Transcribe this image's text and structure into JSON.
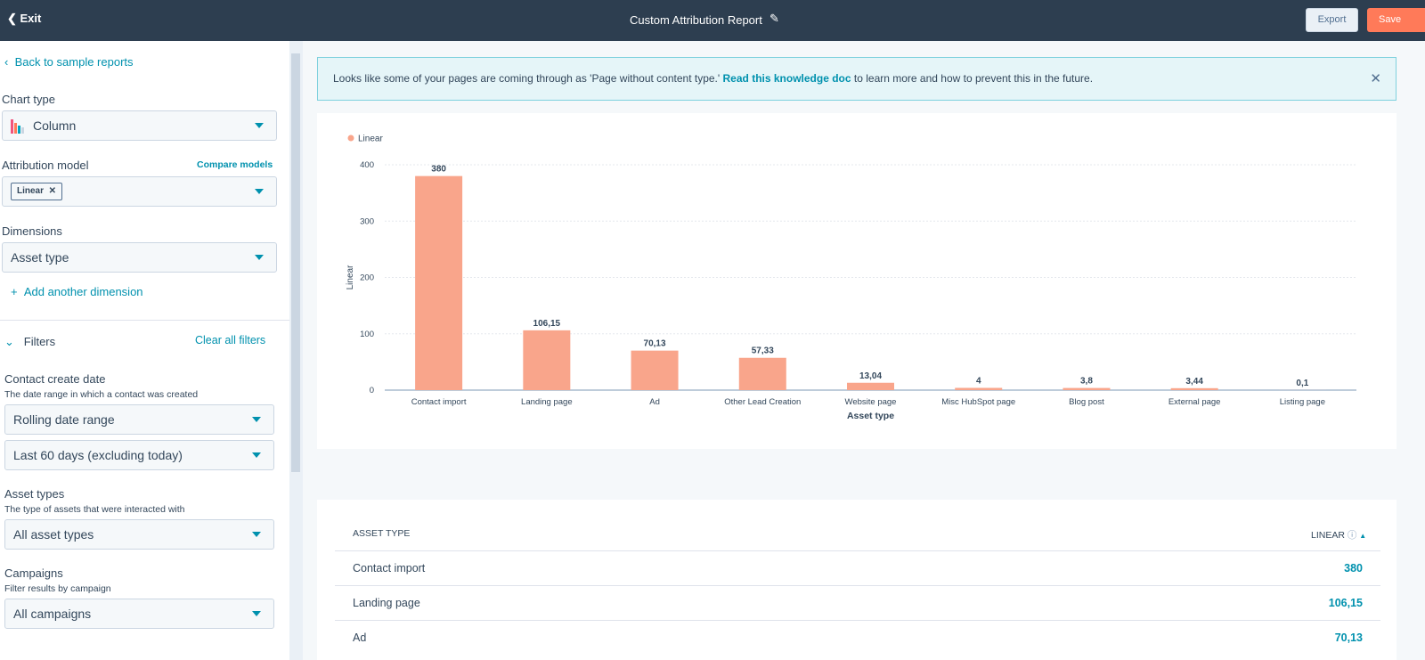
{
  "header": {
    "exit": "Exit",
    "title": "Custom Attribution Report",
    "export": "Export",
    "save": "Save"
  },
  "sidebar": {
    "back": "Back to sample reports",
    "chart_type_label": "Chart type",
    "chart_type": "Column",
    "attribution_label": "Attribution model",
    "compare": "Compare models",
    "model_tag": "Linear",
    "dimensions_label": "Dimensions",
    "dimension": "Asset type",
    "add_dimension": "Add another dimension",
    "filters": "Filters",
    "clear_filters": "Clear all filters",
    "filter_groups": [
      {
        "label": "Contact create date",
        "description": "The date range in which a contact was created",
        "selects": [
          "Rolling date range",
          "Last 60 days (excluding today)"
        ]
      },
      {
        "label": "Asset types",
        "description": "The type of assets that were interacted with",
        "selects": [
          "All asset types"
        ]
      },
      {
        "label": "Campaigns",
        "description": "Filter results by campaign",
        "selects": [
          "All campaigns"
        ]
      }
    ]
  },
  "alert": {
    "text_before": "Looks like some of your pages are coming through as 'Page without content type.'",
    "link": "Read this knowledge doc",
    "text_after": "to learn more and how to prevent this in the future."
  },
  "chart_data": {
    "type": "bar",
    "x_label": "Asset type",
    "y_label": "Linear",
    "categories": [
      "Contact import",
      "Landing page",
      "Ad",
      "Other Lead Creation",
      "Website page",
      "Misc HubSpot page",
      "Blog post",
      "External page",
      "Listing page"
    ],
    "series": [
      {
        "name": "Linear",
        "color": "#f9a58b",
        "values": [
          380,
          106.15,
          70.13,
          57.33,
          13.04,
          4,
          3.8,
          3.44,
          0.1
        ],
        "value_labels": [
          "380",
          "106,15",
          "70,13",
          "57,33",
          "13,04",
          "4",
          "3,8",
          "3,44",
          "0,1"
        ]
      }
    ],
    "ylim": [
      0,
      400
    ],
    "yticks": [
      0,
      100,
      200,
      300,
      400
    ],
    "grid": true,
    "legend": "top-left"
  },
  "table": {
    "columns": [
      "ASSET TYPE",
      "LINEAR"
    ],
    "rows": [
      [
        "Contact import",
        "380"
      ],
      [
        "Landing page",
        "106,15"
      ],
      [
        "Ad",
        "70,13"
      ]
    ]
  }
}
